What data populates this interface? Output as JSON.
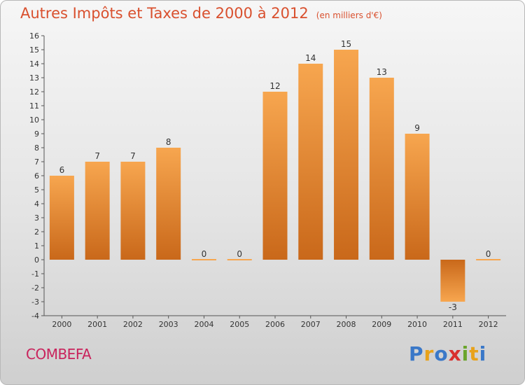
{
  "title": "Autres Impôts et Taxes de 2000 à 2012",
  "title_unit": "(en milliers d'€)",
  "commune": "COMBEFA",
  "brand": {
    "letters": [
      "P",
      "r",
      "o",
      "x",
      "i",
      "t",
      "i"
    ],
    "colors": [
      "#3a78c8",
      "#e8a21a",
      "#3a78c8",
      "#d9302e",
      "#6aa52b",
      "#e8a21a",
      "#3a78c8"
    ]
  },
  "colors": {
    "bar_light": "#f7a64f",
    "bar_dark": "#c9681a",
    "title": "#d9502e",
    "commune": "#c9235c"
  },
  "chart_data": {
    "type": "bar",
    "categories": [
      "2000",
      "2001",
      "2002",
      "2003",
      "2004",
      "2005",
      "2006",
      "2007",
      "2008",
      "2009",
      "2010",
      "2011",
      "2012"
    ],
    "values": [
      6,
      7,
      7,
      8,
      0,
      0,
      12,
      14,
      15,
      13,
      9,
      -3,
      0
    ],
    "ylim": [
      -4,
      16
    ],
    "yticks": [
      -4,
      -3,
      -2,
      -1,
      0,
      1,
      2,
      3,
      4,
      5,
      6,
      7,
      8,
      9,
      10,
      11,
      12,
      13,
      14,
      15,
      16
    ],
    "grid": false,
    "xlabel": "",
    "ylabel": ""
  }
}
